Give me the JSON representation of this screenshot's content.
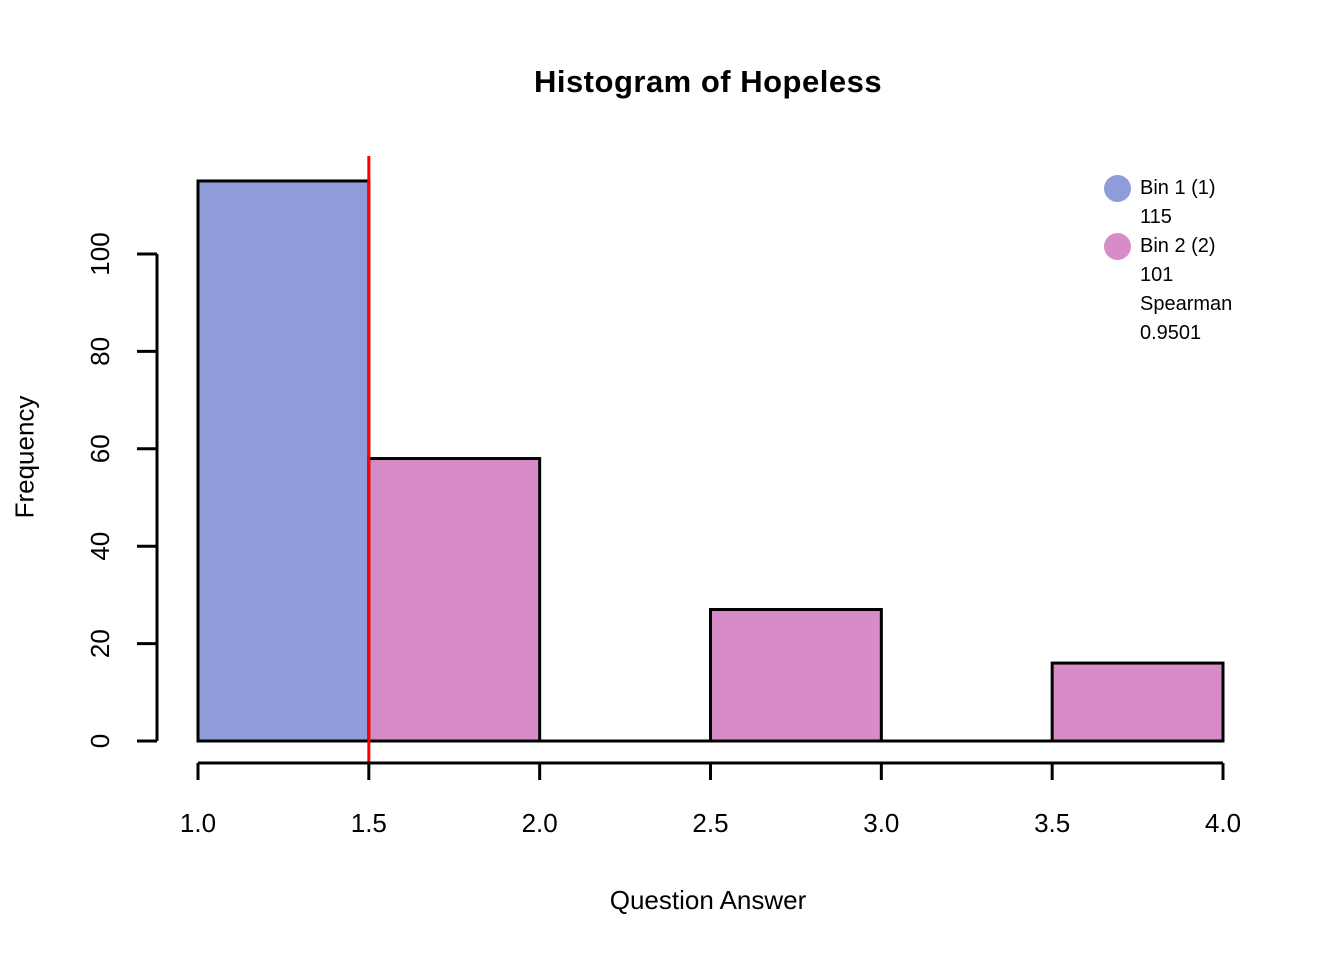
{
  "chart_data": {
    "type": "bar",
    "subtype": "histogram",
    "title": "Histogram of Hopeless",
    "xlabel": "Question Answer",
    "ylabel": "Frequency",
    "bins": [
      {
        "from": 1.0,
        "to": 1.5,
        "count": 115,
        "color": "#8E9CD9"
      },
      {
        "from": 1.5,
        "to": 2.0,
        "count": 58,
        "color": "#D78CC9"
      },
      {
        "from": 2.0,
        "to": 2.5,
        "count": 0,
        "color": "#D78CC9"
      },
      {
        "from": 2.5,
        "to": 3.0,
        "count": 27,
        "color": "#D78CC9"
      },
      {
        "from": 3.0,
        "to": 3.5,
        "count": 0,
        "color": "#D78CC9"
      },
      {
        "from": 3.5,
        "to": 4.0,
        "count": 16,
        "color": "#D78CC9"
      }
    ],
    "xlim": [
      1.0,
      4.0
    ],
    "ylim": [
      0,
      100
    ],
    "x_ticks": [
      1.0,
      1.5,
      2.0,
      2.5,
      3.0,
      3.5,
      4.0
    ],
    "x_tick_labels": [
      "1.0",
      "1.5",
      "2.0",
      "2.5",
      "3.0",
      "3.5",
      "4.0"
    ],
    "y_ticks": [
      0,
      20,
      40,
      60,
      80,
      100
    ],
    "y_tick_labels": [
      "0",
      "20",
      "40",
      "60",
      "80",
      "100"
    ],
    "vline": {
      "x": 1.5,
      "color": "#FF0000"
    },
    "bar_border_color": "#000000",
    "axis_color": "#000000",
    "grid": false,
    "legend_position": "top-right"
  },
  "legend": {
    "entries": [
      {
        "swatch_color": "#8E9CD9",
        "lines": [
          "Bin 1 (1)",
          "115"
        ]
      },
      {
        "swatch_color": "#D78CC9",
        "lines": [
          "Bin 2 (2)",
          "101",
          "Spearman",
          "0.9501"
        ]
      }
    ]
  }
}
